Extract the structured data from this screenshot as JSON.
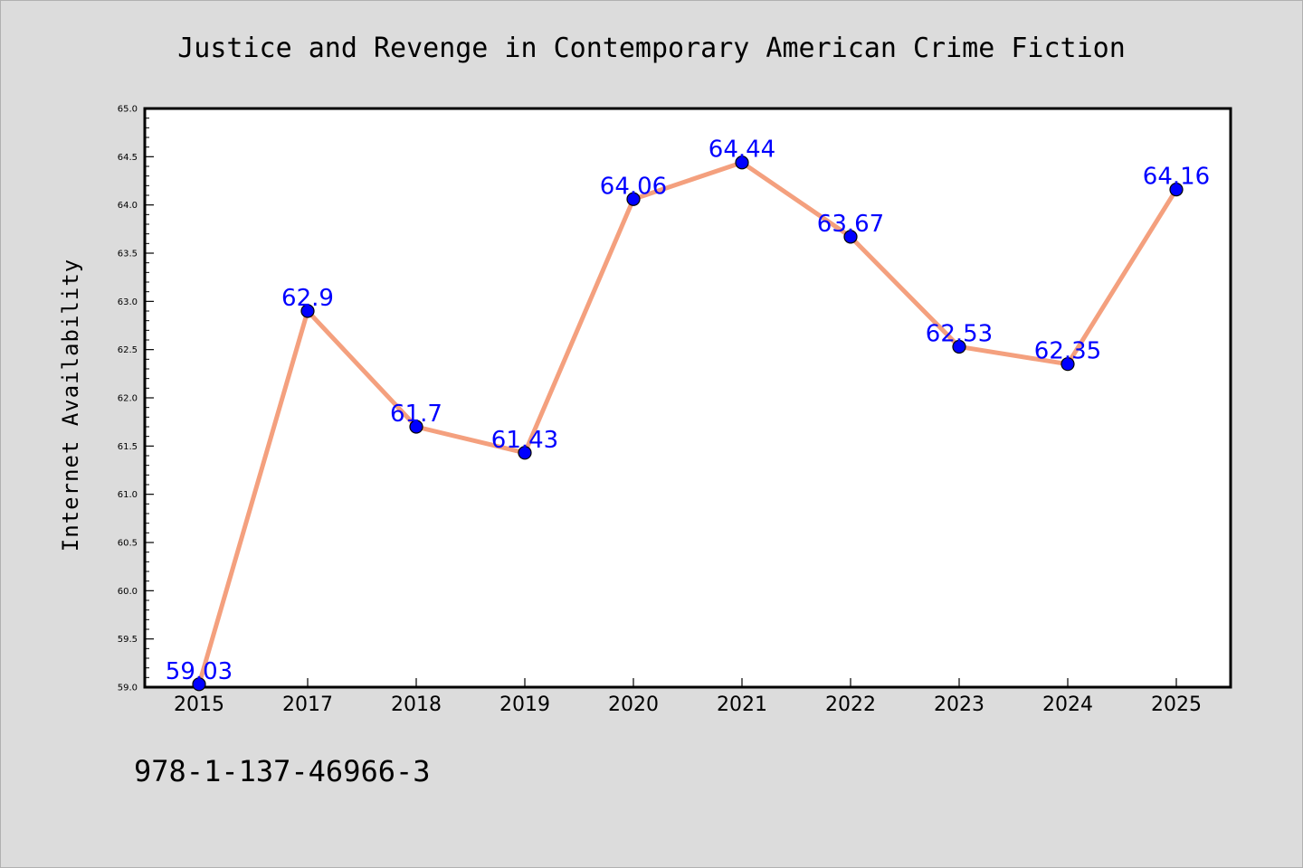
{
  "chart_data": {
    "type": "line",
    "title": "Justice and Revenge in Contemporary American Crime Fiction",
    "xlabel": "",
    "ylabel": "Internet Availability",
    "categories": [
      "2015",
      "2017",
      "2018",
      "2019",
      "2020",
      "2021",
      "2022",
      "2023",
      "2024",
      "2025"
    ],
    "values": [
      59.03,
      62.9,
      61.7,
      61.43,
      64.06,
      64.44,
      63.67,
      62.53,
      62.35,
      64.16
    ],
    "data_labels": [
      "59.03",
      "62.9",
      "61.7",
      "61.43",
      "64.06",
      "64.44",
      "63.67",
      "62.53",
      "62.35",
      "64.16"
    ],
    "ylim": [
      59.0,
      65.0
    ],
    "yticks": [
      "59.0",
      "59.5",
      "60.0",
      "60.5",
      "61.0",
      "61.5",
      "62.0",
      "62.5",
      "63.0",
      "63.5",
      "64.0",
      "64.5",
      "65.0"
    ],
    "grid": false,
    "legend": "none",
    "line_color": "#f4a07e",
    "marker_color": "#0000ff",
    "label_color": "#0000ff",
    "background_color": "#dcdcdc",
    "plot_background": "#ffffff"
  },
  "footer": {
    "isbn": "978-1-137-46966-3"
  }
}
